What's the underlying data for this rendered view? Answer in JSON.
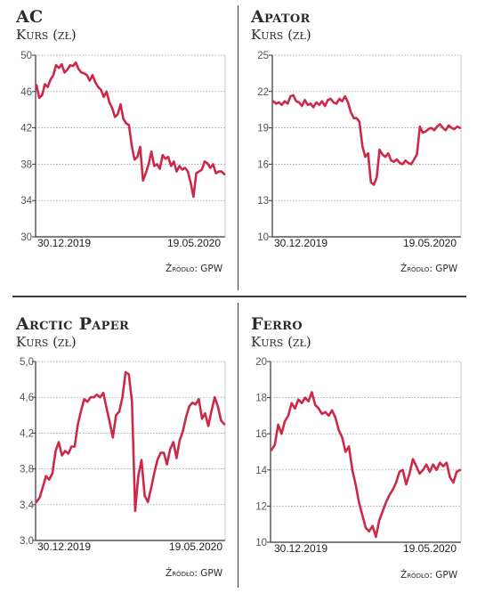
{
  "line_color": "#cc2949",
  "tick_color": "#555555",
  "grid_color": "#8a8a8a",
  "chart_data": [
    {
      "type": "line",
      "title": "AC",
      "subtitle": "Kurs (zł)",
      "ylim": [
        30,
        50
      ],
      "yticks": [
        30,
        34,
        38,
        42,
        46,
        50
      ],
      "ytick_labels": [
        "30",
        "34",
        "38",
        "42",
        "46",
        "50"
      ],
      "xtick_labels": [
        "30.12.2019",
        "19.05.2020"
      ],
      "source": "Źródło: GPW",
      "grid": true,
      "y": [
        46.7,
        45.3,
        45.6,
        46.8,
        46.5,
        47.3,
        47.8,
        48.9,
        48.6,
        49.0,
        48.1,
        48.4,
        48.9,
        48.8,
        49.2,
        48.5,
        48.1,
        48.0,
        47.8,
        47.2,
        47.8,
        47.0,
        46.5,
        46.2,
        45.4,
        46.0,
        44.8,
        44.2,
        43.2,
        43.5,
        44.6,
        43.0,
        42.5,
        42.3,
        40.0,
        38.5,
        38.8,
        39.9,
        36.2,
        37.0,
        38.0,
        39.4,
        37.8,
        38.0,
        37.5,
        39.0,
        38.6,
        38.8,
        37.8,
        38.3,
        37.2,
        37.8,
        37.4,
        37.6,
        37.2,
        36.0,
        34.4,
        37.0,
        37.2,
        37.4,
        38.3,
        38.1,
        37.6,
        38.0,
        37.0,
        37.2,
        37.2,
        36.9
      ]
    },
    {
      "type": "line",
      "title": "Apator",
      "subtitle": "Kurs (zł)",
      "ylim": [
        10,
        25
      ],
      "yticks": [
        10,
        13,
        16,
        19,
        22,
        25
      ],
      "ytick_labels": [
        "10",
        "13",
        "16",
        "19",
        "22",
        "25"
      ],
      "xtick_labels": [
        "30.12.2019",
        "19.05.2020"
      ],
      "source": "Źródło: GPW",
      "grid": true,
      "y": [
        21.2,
        21.0,
        21.1,
        20.9,
        21.2,
        21.0,
        21.6,
        21.7,
        21.2,
        21.1,
        20.8,
        21.3,
        20.9,
        21.0,
        20.7,
        21.1,
        20.9,
        21.2,
        20.8,
        21.3,
        21.4,
        21.1,
        21.0,
        21.4,
        21.2,
        21.6,
        21.1,
        20.3,
        19.8,
        19.8,
        19.5,
        17.5,
        16.6,
        16.9,
        14.5,
        14.3,
        14.9,
        17.2,
        16.8,
        16.6,
        16.9,
        16.3,
        16.2,
        16.4,
        16.1,
        16.0,
        16.3,
        16.1,
        16.0,
        16.4,
        16.8,
        19.1,
        18.6,
        18.7,
        18.9,
        19.0,
        18.8,
        19.1,
        19.3,
        19.0,
        18.8,
        19.2,
        19.0,
        18.9,
        19.1,
        19.0
      ]
    },
    {
      "type": "line",
      "title": "Arctic Paper",
      "subtitle": "Kurs (zł)",
      "ylim": [
        3.0,
        5.0
      ],
      "yticks": [
        3.0,
        3.4,
        3.8,
        4.2,
        4.6,
        5.0
      ],
      "ytick_labels": [
        "3,0",
        "3,4",
        "3,8",
        "4,2",
        "4,6",
        "5,0"
      ],
      "xtick_labels": [
        "30.12.2019",
        "19.05.2020"
      ],
      "source": "Źródło: GPW",
      "grid": true,
      "y": [
        3.43,
        3.48,
        3.6,
        3.72,
        3.68,
        3.75,
        4.0,
        4.1,
        3.95,
        4.0,
        3.97,
        4.05,
        4.05,
        4.3,
        4.45,
        4.58,
        4.55,
        4.6,
        4.6,
        4.63,
        4.6,
        4.65,
        4.48,
        4.32,
        4.15,
        4.4,
        4.44,
        4.6,
        4.88,
        4.86,
        4.55,
        3.33,
        3.72,
        3.9,
        3.5,
        3.43,
        3.58,
        3.75,
        3.9,
        3.98,
        3.98,
        3.85,
        4.02,
        4.1,
        3.92,
        4.12,
        4.22,
        4.38,
        4.5,
        4.54,
        4.52,
        4.58,
        4.36,
        4.42,
        4.28,
        4.45,
        4.6,
        4.5,
        4.34,
        4.3
      ]
    },
    {
      "type": "line",
      "title": "Ferro",
      "subtitle": "Kurs (zł)",
      "ylim": [
        10,
        20
      ],
      "yticks": [
        10,
        12,
        14,
        16,
        18,
        20
      ],
      "ytick_labels": [
        "10",
        "12",
        "14",
        "16",
        "18",
        "20"
      ],
      "xtick_labels": [
        "30.12.2019",
        "19.05.2020"
      ],
      "source": "Źródło: GPW",
      "grid": true,
      "y": [
        15.1,
        15.4,
        16.5,
        16.0,
        16.7,
        17.0,
        17.7,
        17.4,
        17.9,
        17.7,
        18.0,
        17.8,
        18.3,
        17.6,
        17.4,
        17.1,
        17.2,
        17.0,
        17.3,
        16.9,
        16.2,
        15.8,
        15.0,
        15.3,
        14.0,
        13.2,
        12.2,
        11.5,
        10.8,
        10.6,
        10.9,
        10.3,
        11.2,
        11.7,
        12.2,
        12.6,
        12.9,
        13.3,
        13.9,
        14.0,
        13.2,
        13.8,
        14.6,
        14.2,
        13.8,
        14.0,
        14.3,
        13.9,
        14.3,
        14.0,
        14.4,
        14.2,
        14.4,
        13.6,
        13.3,
        13.9,
        14.0
      ]
    }
  ]
}
